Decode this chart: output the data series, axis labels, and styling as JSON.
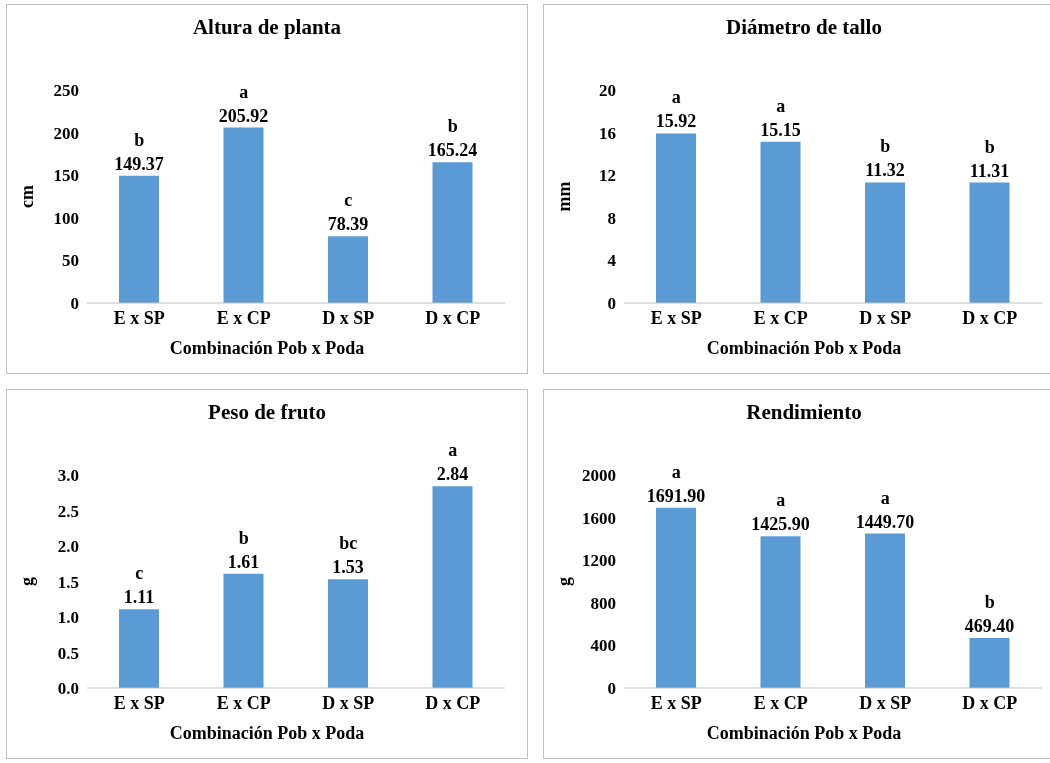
{
  "chart_data": [
    {
      "type": "bar",
      "title": "Altura de planta",
      "xlabel": "Combinación Pob x Poda",
      "ylabel": "cm",
      "categories": [
        "E x SP",
        "E x CP",
        "D x SP",
        "D x CP"
      ],
      "values": [
        149.37,
        205.92,
        78.39,
        165.24
      ],
      "value_labels": [
        "149.37",
        "205.92",
        "78.39",
        "165.24"
      ],
      "color": "#5b9bd5",
      "ylim": [
        0,
        250
      ],
      "yticks": [
        0,
        50,
        100,
        150,
        200,
        250
      ],
      "grid": false,
      "legend": false,
      "annotations": [
        {
          "text": "b",
          "x": "E x SP",
          "y": 149.37
        },
        {
          "text": "a",
          "x": "E x CP",
          "y": 205.92
        },
        {
          "text": "c",
          "x": "D x SP",
          "y": 78.39
        },
        {
          "text": "b",
          "x": "D x CP",
          "y": 165.24
        }
      ]
    },
    {
      "type": "bar",
      "title": "Diámetro de tallo",
      "xlabel": "Combinación Pob x Poda",
      "ylabel": "mm",
      "categories": [
        "E x SP",
        "E x CP",
        "D x SP",
        "D x CP"
      ],
      "values": [
        15.92,
        15.15,
        11.32,
        11.31
      ],
      "value_labels": [
        "15.92",
        "15.15",
        "11.32",
        "11.31"
      ],
      "color": "#5b9bd5",
      "ylim": [
        0,
        20
      ],
      "yticks": [
        0,
        4,
        8,
        12,
        16,
        20
      ],
      "grid": false,
      "legend": false,
      "annotations": [
        {
          "text": "a",
          "x": "E x SP",
          "y": 15.92
        },
        {
          "text": "a",
          "x": "E x CP",
          "y": 15.15
        },
        {
          "text": "b",
          "x": "D x SP",
          "y": 11.32
        },
        {
          "text": "b",
          "x": "D x CP",
          "y": 11.31
        }
      ]
    },
    {
      "type": "bar",
      "title": "Peso de fruto",
      "xlabel": "Combinación Pob x Poda",
      "ylabel": "g",
      "categories": [
        "E x SP",
        "E x CP",
        "D x SP",
        "D x CP"
      ],
      "values": [
        1.11,
        1.61,
        1.53,
        2.84
      ],
      "value_labels": [
        "1.11",
        "1.61",
        "1.53",
        "2.84"
      ],
      "color": "#5b9bd5",
      "ylim": [
        0,
        3
      ],
      "yticks": [
        {
          "value": 0,
          "label": "0.0"
        },
        {
          "value": 0.5,
          "label": "0.5"
        },
        {
          "value": 1,
          "label": "1.0"
        },
        {
          "value": 1.5,
          "label": "1.5"
        },
        {
          "value": 2,
          "label": "2.0"
        },
        {
          "value": 2.5,
          "label": "2.5"
        },
        {
          "value": 3,
          "label": "3.0"
        }
      ],
      "grid": false,
      "legend": false,
      "annotations": [
        {
          "text": "c",
          "x": "E x SP",
          "y": 1.11
        },
        {
          "text": "b",
          "x": "E x CP",
          "y": 1.61
        },
        {
          "text": "bc",
          "x": "D x SP",
          "y": 1.53
        },
        {
          "text": "a",
          "x": "D x CP",
          "y": 2.84
        }
      ]
    },
    {
      "type": "bar",
      "title": "Rendimiento",
      "xlabel": "Combinación Pob x Poda",
      "ylabel": "g",
      "categories": [
        "E x SP",
        "E x CP",
        "D x SP",
        "D x CP"
      ],
      "values": [
        1691.9,
        1425.9,
        1449.7,
        469.4
      ],
      "value_labels": [
        "1691.90",
        "1425.90",
        "1449.70",
        "469.40"
      ],
      "color": "#5b9bd5",
      "ylim": [
        0,
        2000
      ],
      "yticks": [
        0,
        400,
        800,
        1200,
        1600,
        2000
      ],
      "grid": false,
      "legend": false,
      "annotations": [
        {
          "text": "a",
          "x": "E x SP",
          "y": 1691.9
        },
        {
          "text": "a",
          "x": "E x CP",
          "y": 1425.9
        },
        {
          "text": "a",
          "x": "D x SP",
          "y": 1449.7
        },
        {
          "text": "b",
          "x": "D x CP",
          "y": 469.4
        }
      ]
    }
  ]
}
